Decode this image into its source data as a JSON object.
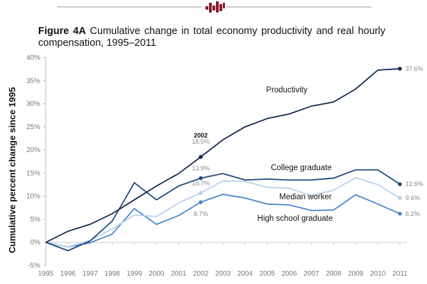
{
  "header": {
    "figure_label": "Figure 4A",
    "title": "Cumulative change in total economy productivity and real hourly compensation, 1995–2011"
  },
  "chart_data": {
    "type": "line",
    "title": "Cumulative change in total economy productivity and real hourly compensation, 1995–2011",
    "xlabel": "",
    "ylabel": "Cumulative percent change since 1995",
    "ylim": [
      -5,
      40
    ],
    "yticks": [
      "-5%",
      "0%",
      "5%",
      "10%",
      "15%",
      "20%",
      "25%",
      "30%",
      "35%",
      "40%"
    ],
    "x": [
      "1995",
      "1996",
      "1997",
      "1998",
      "1999",
      "2000",
      "2001",
      "2002",
      "2003",
      "2004",
      "2005",
      "2006",
      "2007",
      "2008",
      "2009",
      "2010",
      "2011"
    ],
    "grid": false,
    "series": [
      {
        "name": "Productivity",
        "color": "#13294b",
        "values": [
          0,
          2.4,
          3.9,
          6.2,
          9.2,
          12.2,
          14.9,
          18.5,
          22.2,
          25.0,
          26.8,
          27.8,
          29.5,
          30.4,
          33.2,
          37.3,
          37.6
        ],
        "label_2002": "18.5%",
        "label_2011": "37.6%"
      },
      {
        "name": "College graduate",
        "color": "#1f497d",
        "values": [
          0,
          -1.8,
          0.3,
          4.6,
          12.9,
          9.2,
          12.2,
          13.9,
          14.9,
          13.5,
          13.7,
          13.5,
          13.5,
          13.9,
          15.7,
          15.7,
          12.6
        ],
        "label_2002": "13.9%",
        "label_2011": "12.6%"
      },
      {
        "name": "Median worker",
        "color": "#b8d1ee",
        "values": [
          0,
          -1.0,
          0.4,
          2.9,
          5.9,
          5.6,
          8.5,
          10.7,
          13.3,
          13.2,
          11.9,
          11.7,
          10.1,
          11.3,
          14.0,
          12.5,
          9.6
        ],
        "label_2002": "10.7%",
        "label_2011": "9.6%"
      },
      {
        "name": "High school graduate",
        "color": "#4a86cf",
        "values": [
          0,
          -1.0,
          -0.1,
          1.8,
          7.3,
          3.9,
          5.8,
          8.7,
          10.4,
          9.6,
          8.3,
          8.1,
          6.9,
          7.0,
          10.3,
          8.3,
          6.2
        ],
        "label_2002": "8.7%",
        "label_2011": "6.2%"
      }
    ],
    "annotations": {
      "year_2002": "2002"
    }
  }
}
